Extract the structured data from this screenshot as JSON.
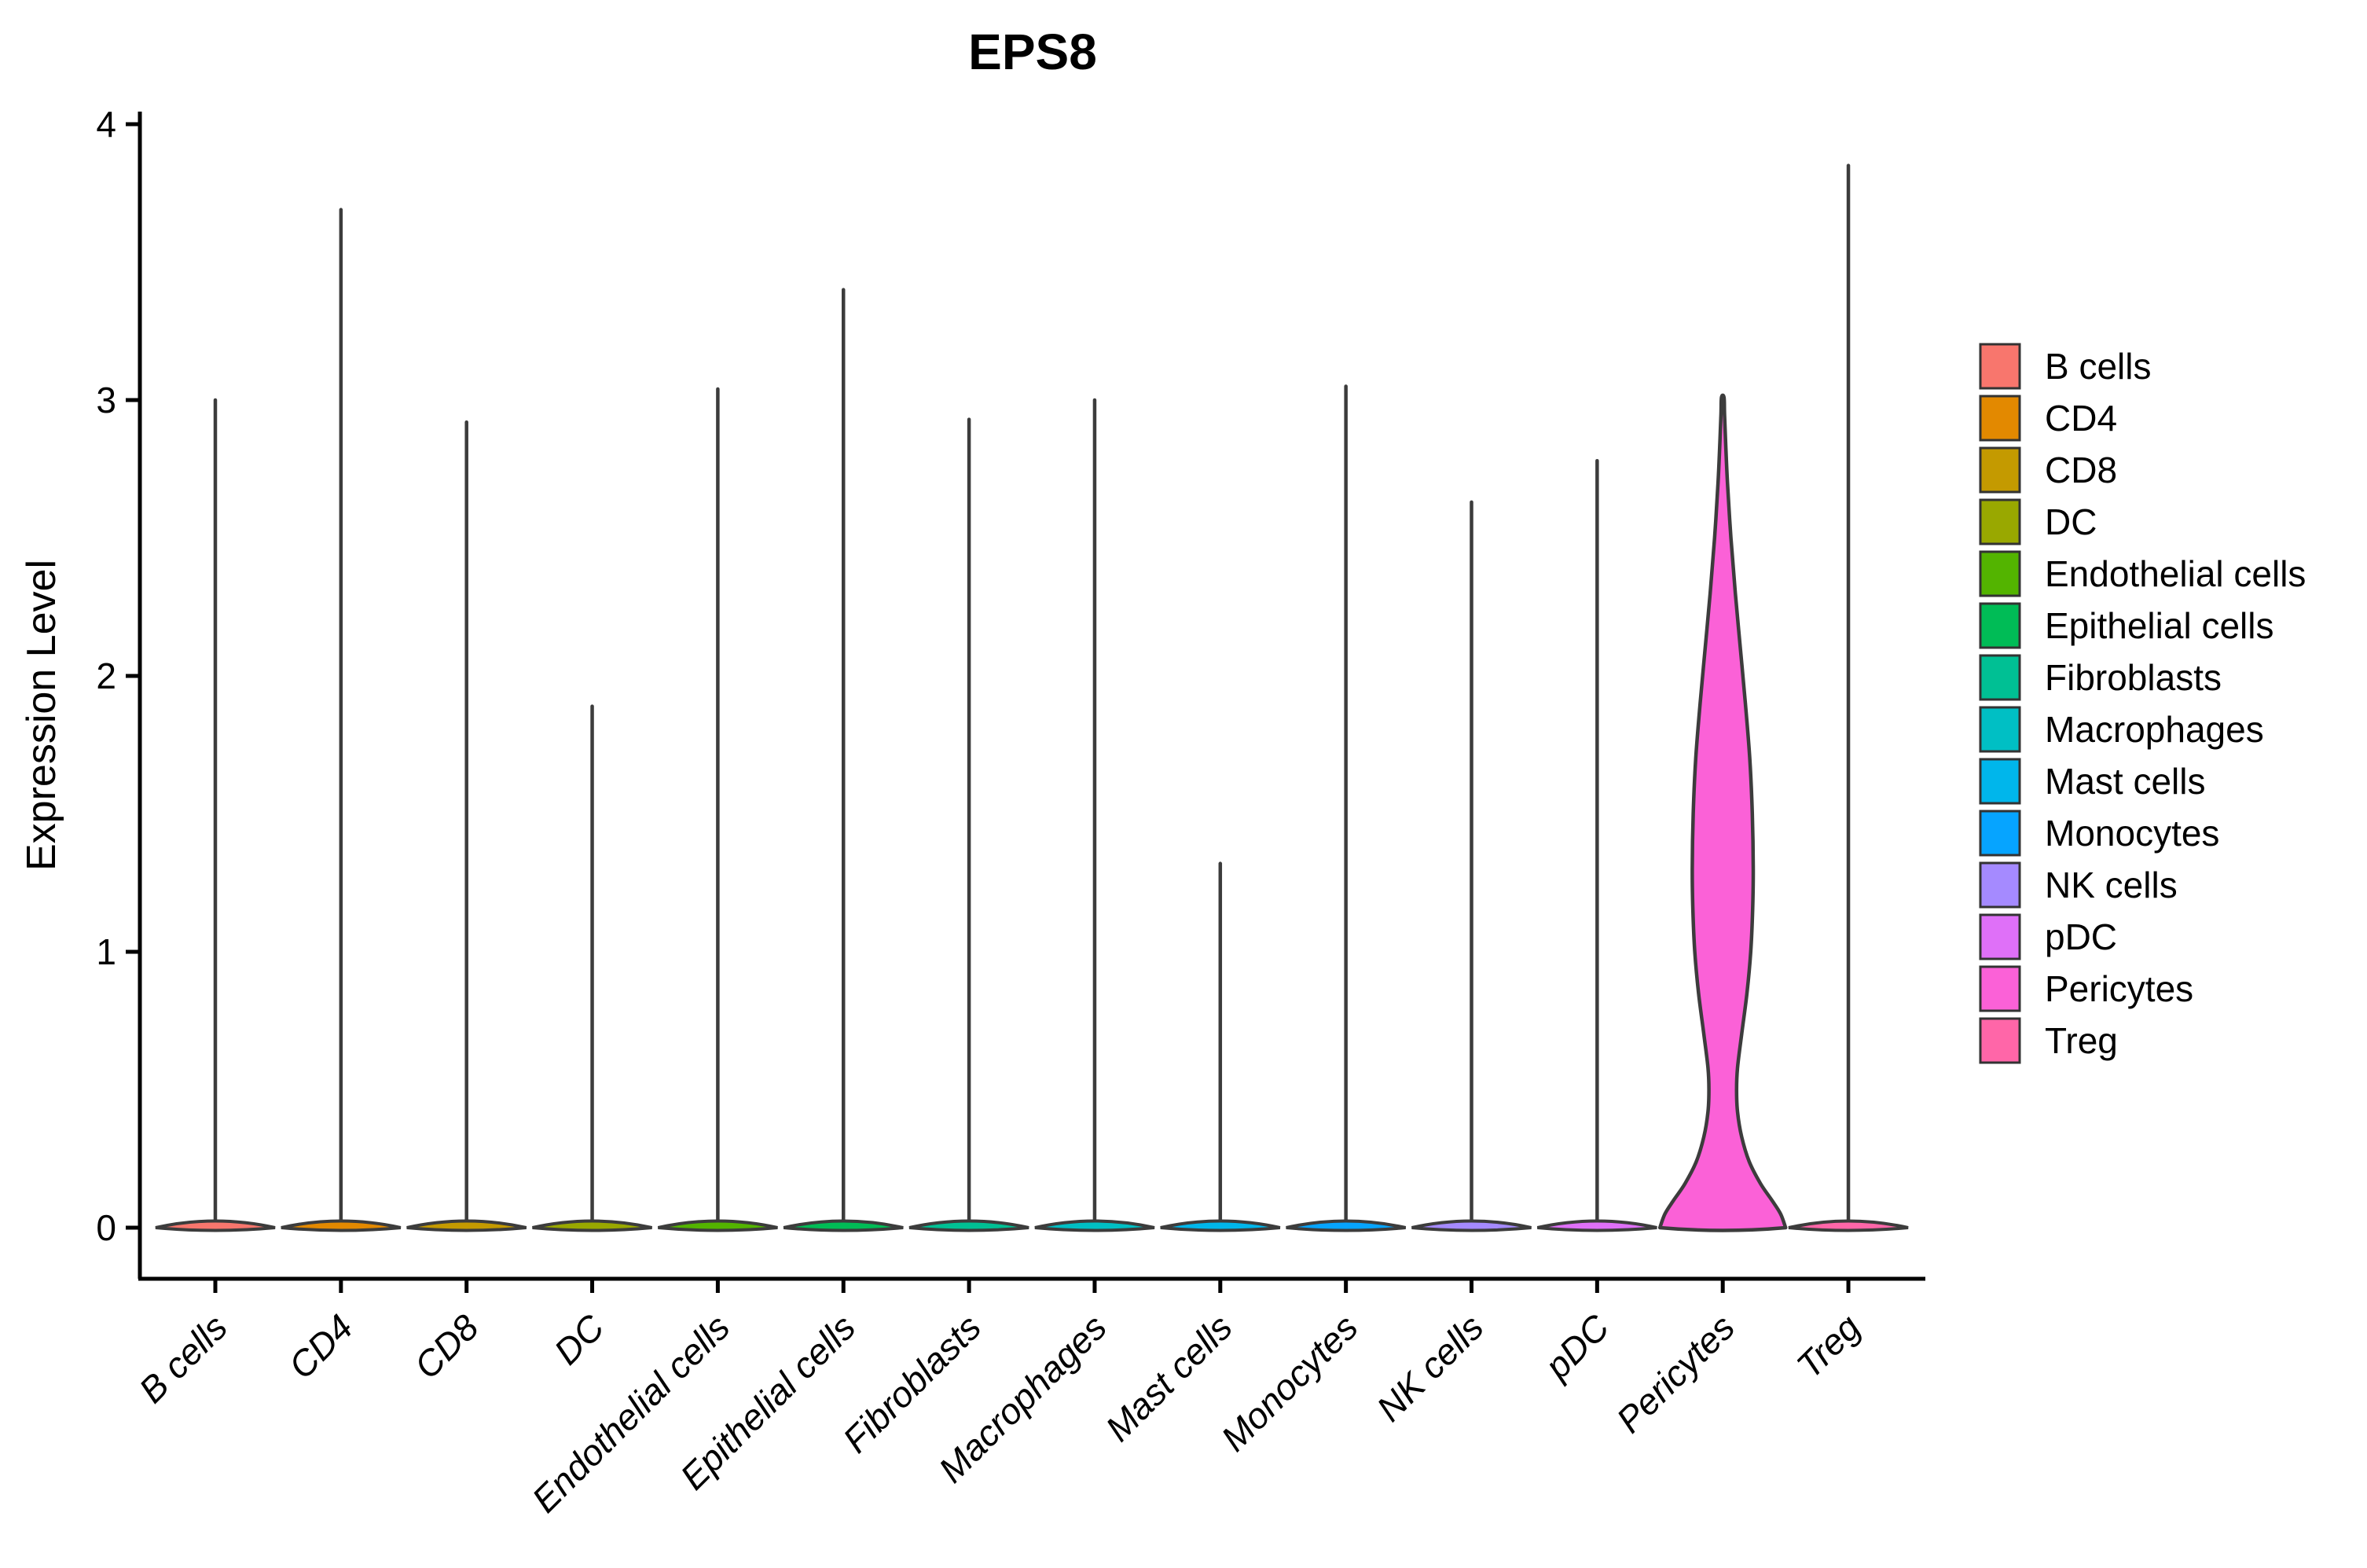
{
  "title": "EPS8",
  "y_axis": {
    "label": "Expression Level",
    "tick_labels": [
      "0",
      "1",
      "2",
      "3",
      "4"
    ]
  },
  "x_axis": {
    "tick_labels": [
      "B cells",
      "CD4",
      "CD8",
      "DC",
      "Endothelial cells",
      "Epithelial cells",
      "Fibroblasts",
      "Macrophages",
      "Mast cells",
      "Monocytes",
      "NK cells",
      "pDC",
      "Pericytes",
      "Treg"
    ]
  },
  "legend": {
    "position": "right",
    "labels": [
      "B cells",
      "CD4",
      "CD8",
      "DC",
      "Endothelial cells",
      "Epithelial cells",
      "Fibroblasts",
      "Macrophages",
      "Mast cells",
      "Monocytes",
      "NK cells",
      "pDC",
      "Pericytes",
      "Treg"
    ]
  },
  "chart_data": {
    "type": "violin",
    "title": "EPS8",
    "xlabel": "",
    "ylabel": "Expression Level",
    "ylim": [
      0,
      4
    ],
    "y_ticks": [
      0,
      1,
      2,
      3,
      4
    ],
    "grid": false,
    "legend_position": "right",
    "outline_color": "#3C3C3C",
    "axis_color": "#000000",
    "base_halfwidth_frac": 0.95,
    "series": [
      {
        "name": "B cells",
        "color": "#F8766D",
        "peak": 3.0,
        "shape": "spike"
      },
      {
        "name": "CD4",
        "color": "#E38900",
        "peak": 3.69,
        "shape": "spike"
      },
      {
        "name": "CD8",
        "color": "#C49A00",
        "peak": 2.92,
        "shape": "spike"
      },
      {
        "name": "DC",
        "color": "#99A800",
        "peak": 1.89,
        "shape": "spike"
      },
      {
        "name": "Endothelial cells",
        "color": "#53B400",
        "peak": 3.04,
        "shape": "spike"
      },
      {
        "name": "Epithelial cells",
        "color": "#00BC56",
        "peak": 3.4,
        "shape": "spike"
      },
      {
        "name": "Fibroblasts",
        "color": "#00C094",
        "peak": 2.93,
        "shape": "spike"
      },
      {
        "name": "Macrophages",
        "color": "#00BFC4",
        "peak": 3.0,
        "shape": "spike"
      },
      {
        "name": "Mast cells",
        "color": "#00B6EB",
        "peak": 1.32,
        "shape": "spike"
      },
      {
        "name": "Monocytes",
        "color": "#06A4FF",
        "peak": 3.05,
        "shape": "spike"
      },
      {
        "name": "NK cells",
        "color": "#A58AFF",
        "peak": 2.63,
        "shape": "spike"
      },
      {
        "name": "pDC",
        "color": "#DF70F8",
        "peak": 2.78,
        "shape": "spike"
      },
      {
        "name": "Pericytes",
        "color": "#FB61D7",
        "peak": 3.01,
        "shape": "bulb",
        "profile": [
          [
            0,
            1.0
          ],
          [
            0.05,
            0.92
          ],
          [
            0.1,
            0.78
          ],
          [
            0.16,
            0.6
          ],
          [
            0.24,
            0.42
          ],
          [
            0.33,
            0.3
          ],
          [
            0.42,
            0.235
          ],
          [
            0.5,
            0.22
          ],
          [
            0.58,
            0.235
          ],
          [
            0.7,
            0.3
          ],
          [
            0.85,
            0.385
          ],
          [
            1.0,
            0.445
          ],
          [
            1.15,
            0.475
          ],
          [
            1.3,
            0.485
          ],
          [
            1.5,
            0.47
          ],
          [
            1.7,
            0.43
          ],
          [
            1.9,
            0.36
          ],
          [
            2.1,
            0.28
          ],
          [
            2.3,
            0.2
          ],
          [
            2.5,
            0.13
          ],
          [
            2.7,
            0.075
          ],
          [
            2.85,
            0.045
          ],
          [
            2.95,
            0.028
          ],
          [
            3.01,
            0.02
          ]
        ]
      },
      {
        "name": "Treg",
        "color": "#FF66A8",
        "peak": 3.85,
        "shape": "spike"
      }
    ]
  }
}
